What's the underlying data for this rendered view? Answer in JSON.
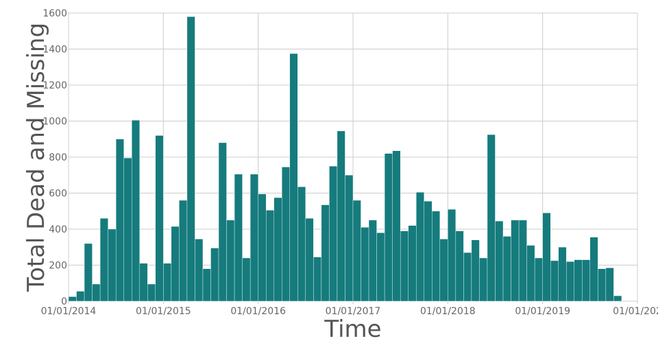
{
  "chart_data": {
    "type": "bar",
    "title": "",
    "xlabel": "Time",
    "ylabel": "Total Dead and Missing",
    "ylim": [
      0,
      1600
    ],
    "yticks": [
      0,
      200,
      400,
      600,
      800,
      1000,
      1200,
      1400,
      1600
    ],
    "xlim": [
      "2014-01-01",
      "2020-01-01"
    ],
    "xticks": [
      "01/01/2014",
      "01/01/2015",
      "01/01/2016",
      "01/01/2017",
      "01/01/2018",
      "01/01/2019",
      "01/01/202"
    ],
    "grid": true,
    "bar_color": "#167b7d",
    "x_start": "2014-01",
    "x_step": "1 month",
    "values": [
      25,
      55,
      320,
      95,
      460,
      400,
      900,
      795,
      1005,
      210,
      95,
      920,
      210,
      415,
      560,
      1580,
      345,
      180,
      295,
      880,
      450,
      705,
      240,
      705,
      595,
      505,
      575,
      745,
      1375,
      635,
      460,
      245,
      535,
      750,
      945,
      700,
      560,
      410,
      450,
      380,
      820,
      835,
      390,
      420,
      605,
      555,
      500,
      345,
      510,
      390,
      270,
      340,
      240,
      925,
      445,
      360,
      450,
      450,
      310,
      240,
      490,
      225,
      300,
      220,
      230,
      230,
      355,
      180,
      185,
      30
    ]
  }
}
